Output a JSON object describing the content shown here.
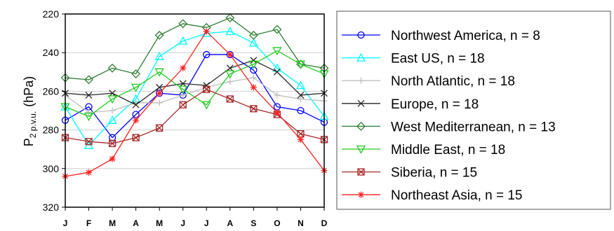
{
  "chart_data": {
    "type": "line",
    "title": "",
    "xlabel": "",
    "ylabel": "P",
    "ylabel_sub": "2 p.v.u.",
    "ylabel_unit": "(hPa)",
    "categories": [
      "J",
      "F",
      "M",
      "A",
      "M",
      "J",
      "J",
      "A",
      "S",
      "O",
      "N",
      "D"
    ],
    "ylim": [
      320,
      220
    ],
    "y_inverted": true,
    "yticks": [
      "220",
      "240",
      "260",
      "280",
      "300",
      "320"
    ],
    "grid": "horizontal",
    "legend_position": "right",
    "series": [
      {
        "name": "Northwest America, n = 8",
        "color": "#0000ff",
        "marker": "circle",
        "values": [
          275,
          268,
          284,
          272,
          261,
          262,
          241,
          241,
          249,
          268,
          270,
          276
        ]
      },
      {
        "name": "East US,  n = 18",
        "color": "#00ffff",
        "marker": "triangle-up",
        "values": [
          268,
          288,
          275,
          264,
          242,
          234,
          230,
          229,
          235,
          248,
          257,
          273
        ]
      },
      {
        "name": "North Atlantic,  n = 18",
        "color": "#bfbfbf",
        "marker": "plus",
        "values": [
          262,
          271,
          270,
          266,
          266,
          262,
          258,
          255,
          253,
          262,
          264,
          265
        ]
      },
      {
        "name": "Europe,  n = 18",
        "color": "#262626",
        "marker": "x",
        "values": [
          261,
          262,
          261,
          267,
          258,
          256,
          257,
          248,
          244,
          250,
          262,
          261
        ]
      },
      {
        "name": "West Mediterranean, n = 13",
        "color": "#2e7d32",
        "marker": "diamond",
        "values": [
          253,
          254,
          248,
          251,
          231,
          225,
          227,
          222,
          231,
          228,
          246,
          248
        ]
      },
      {
        "name": "Middle East, n = 18",
        "color": "#22cc22",
        "marker": "triangle-down",
        "values": [
          268,
          273,
          264,
          258,
          250,
          259,
          267,
          251,
          246,
          239,
          246,
          251
        ]
      },
      {
        "name": "Siberia,  n = 15",
        "color": "#a52a2a",
        "marker": "square-x",
        "values": [
          284,
          286,
          287,
          284,
          279,
          267,
          259,
          264,
          269,
          272,
          282,
          285
        ]
      },
      {
        "name": "Northeast Asia,  n = 15",
        "color": "#ff2020",
        "marker": "star",
        "values": [
          304,
          302,
          295,
          275,
          261,
          248,
          229,
          241,
          258,
          271,
          285,
          301
        ]
      }
    ]
  }
}
